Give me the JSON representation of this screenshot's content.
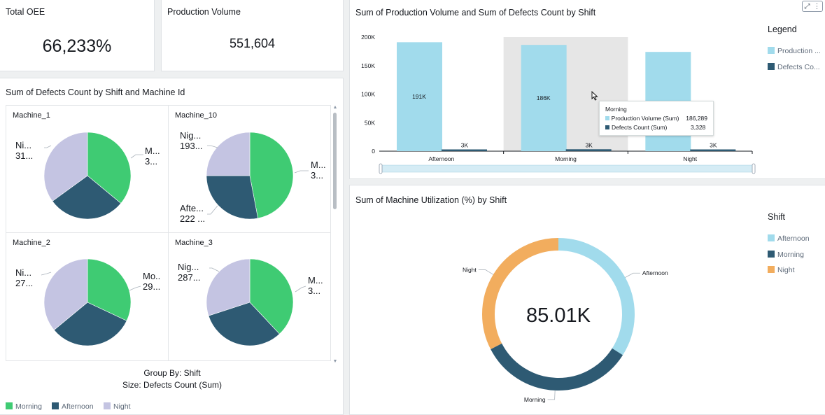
{
  "kpis": {
    "oee": {
      "title": "Total OEE",
      "value": "66,233%"
    },
    "production": {
      "title": "Production Volume",
      "value": "551,604"
    }
  },
  "pie_panel": {
    "title": "Sum of Defects Count by Shift and Machine Id",
    "cells": [
      {
        "name": "Machine_1",
        "labels": {
          "night": [
            "Ni...",
            "31..."
          ],
          "morning": [
            "M...",
            "3..."
          ]
        }
      },
      {
        "name": "Machine_10",
        "labels": {
          "night": [
            "Nig...",
            "193..."
          ],
          "morning": [
            "M...",
            "3..."
          ],
          "afternoon": [
            "Afte...",
            "222 ..."
          ]
        }
      },
      {
        "name": "Machine_2",
        "labels": {
          "night": [
            "Ni...",
            "27..."
          ],
          "morning": [
            "Mo..",
            "29..."
          ]
        }
      },
      {
        "name": "Machine_3",
        "labels": {
          "night": [
            "Nig...",
            "287..."
          ],
          "morning": [
            "M...",
            "3..."
          ]
        }
      }
    ],
    "group_by": "Group By: Shift",
    "size_by": "Size: Defects Count (Sum)",
    "legend": [
      {
        "label": "Morning",
        "color": "#3fcb73"
      },
      {
        "label": "Afternoon",
        "color": "#2e5a73"
      },
      {
        "label": "Night",
        "color": "#c4c4e2"
      }
    ]
  },
  "bar_panel": {
    "title": "Sum of Production Volume and Sum of Defects Count by Shift",
    "legend_title": "Legend",
    "legend": [
      {
        "label": "Production ...",
        "color": "#a1dbec"
      },
      {
        "label": "Defects Co...",
        "color": "#2e5a73"
      }
    ],
    "tooltip": {
      "title": "Morning",
      "rows": [
        {
          "label": "Production Volume (Sum)",
          "value": "186,289",
          "color": "#a1dbec"
        },
        {
          "label": "Defects Count (Sum)",
          "value": "3,328",
          "color": "#2e5a73"
        }
      ]
    }
  },
  "donut_panel": {
    "title": "Sum of Machine Utilization (%) by Shift",
    "center_value": "85.01K",
    "legend_title": "Shift",
    "legend": [
      {
        "label": "Afternoon",
        "color": "#a1dbec"
      },
      {
        "label": "Morning",
        "color": "#2e5a73"
      },
      {
        "label": "Night",
        "color": "#f2ad5e"
      }
    ]
  },
  "chart_data": [
    {
      "type": "bar",
      "title": "Sum of Production Volume and Sum of Defects Count by Shift",
      "categories": [
        "Afternoon",
        "Morning",
        "Night"
      ],
      "series": [
        {
          "name": "Production ...",
          "values": [
            191000,
            186289,
            174000
          ],
          "color": "#a1dbec",
          "labels": [
            "191K",
            "186K",
            ""
          ]
        },
        {
          "name": "Defects Co...",
          "values": [
            3000,
            3328,
            3000
          ],
          "color": "#2e5a73",
          "labels": [
            "3K",
            "3K",
            "3K"
          ]
        }
      ],
      "y_ticks": [
        {
          "value": 0,
          "label": "0"
        },
        {
          "value": 50000,
          "label": "50K"
        },
        {
          "value": 100000,
          "label": "100K"
        },
        {
          "value": 150000,
          "label": "150K"
        },
        {
          "value": 200000,
          "label": "200K"
        }
      ],
      "ylim": [
        0,
        200000
      ],
      "highlighted_category": "Morning",
      "grid": false,
      "legend_position": "right"
    },
    {
      "type": "pie",
      "title": "Sum of Machine Utilization (%) by Shift",
      "donut": true,
      "categories": [
        "Afternoon",
        "Morning",
        "Night"
      ],
      "values": [
        28.9,
        28.4,
        27.7
      ],
      "colors": [
        "#a1dbec",
        "#2e5a73",
        "#f2ad5e"
      ]
    },
    {
      "type": "pie",
      "title": "Machine_1",
      "categories": [
        "Morning",
        "Afternoon",
        "Night"
      ],
      "values": [
        36,
        29,
        35
      ],
      "colors": [
        "#3fcb73",
        "#2e5a73",
        "#c4c4e2"
      ]
    },
    {
      "type": "pie",
      "title": "Machine_10",
      "categories": [
        "Morning",
        "Afternoon",
        "Night"
      ],
      "values": [
        47,
        28,
        25
      ],
      "colors": [
        "#3fcb73",
        "#2e5a73",
        "#c4c4e2"
      ]
    },
    {
      "type": "pie",
      "title": "Machine_2",
      "categories": [
        "Morning",
        "Afternoon",
        "Night"
      ],
      "values": [
        32,
        32,
        36
      ],
      "colors": [
        "#3fcb73",
        "#2e5a73",
        "#c4c4e2"
      ]
    },
    {
      "type": "pie",
      "title": "Machine_3",
      "categories": [
        "Morning",
        "Afternoon",
        "Night"
      ],
      "values": [
        38,
        32,
        30
      ],
      "colors": [
        "#3fcb73",
        "#2e5a73",
        "#c4c4e2"
      ]
    }
  ]
}
